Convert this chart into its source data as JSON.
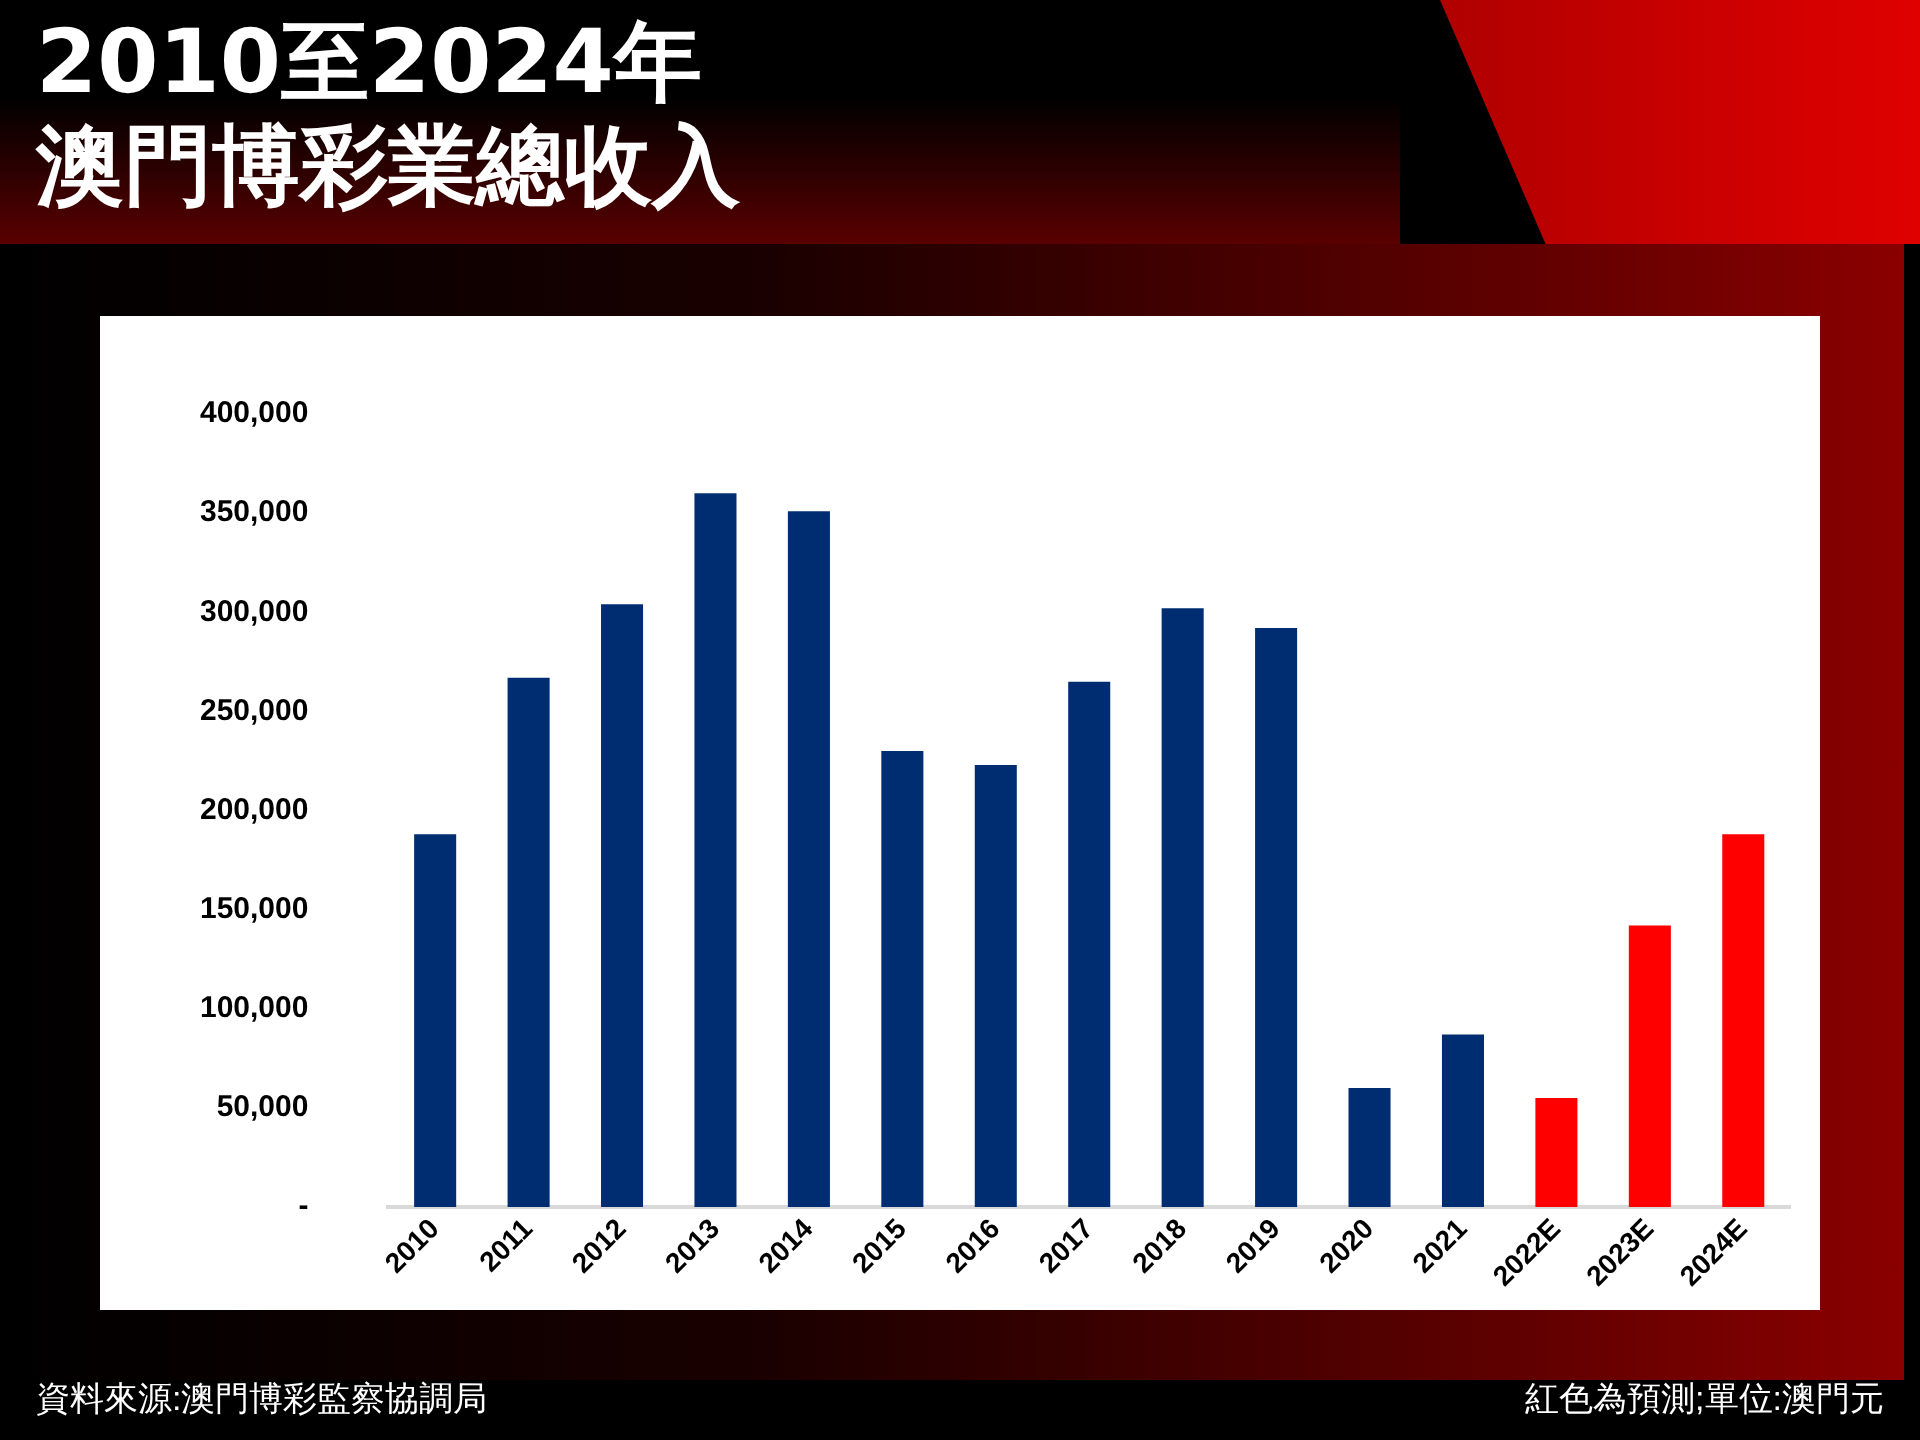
{
  "chart_data": {
    "type": "bar",
    "title": "2010至2024年",
    "subtitle": "澳門博彩業總收入",
    "categories": [
      "2010",
      "2011",
      "2012",
      "2013",
      "2014",
      "2015",
      "2016",
      "2017",
      "2018",
      "2019",
      "2020",
      "2021",
      "2022E",
      "2023E",
      "2024E"
    ],
    "values": [
      188000,
      267000,
      304000,
      360000,
      351000,
      230000,
      223000,
      265000,
      302000,
      292000,
      60000,
      87000,
      55000,
      142000,
      188000
    ],
    "colors": [
      "#002d72",
      "#002d72",
      "#002d72",
      "#002d72",
      "#002d72",
      "#002d72",
      "#002d72",
      "#002d72",
      "#002d72",
      "#002d72",
      "#002d72",
      "#002d72",
      "#ff0000",
      "#ff0000",
      "#ff0000"
    ],
    "ylim": [
      0,
      400000
    ],
    "yticks": [
      {
        "value": 0,
        "label": "-"
      },
      {
        "value": 50000,
        "label": "50,000"
      },
      {
        "value": 100000,
        "label": "100,000"
      },
      {
        "value": 150000,
        "label": "150,000"
      },
      {
        "value": 200000,
        "label": "200,000"
      },
      {
        "value": 250000,
        "label": "250,000"
      },
      {
        "value": 300000,
        "label": "300,000"
      },
      {
        "value": 350000,
        "label": "350,000"
      },
      {
        "value": 400000,
        "label": "400,000"
      }
    ],
    "grid": false,
    "legend": false,
    "annotations": [
      "資料來源:澳門博彩監察協調局",
      "紅色為預測;單位:澳門元"
    ]
  }
}
